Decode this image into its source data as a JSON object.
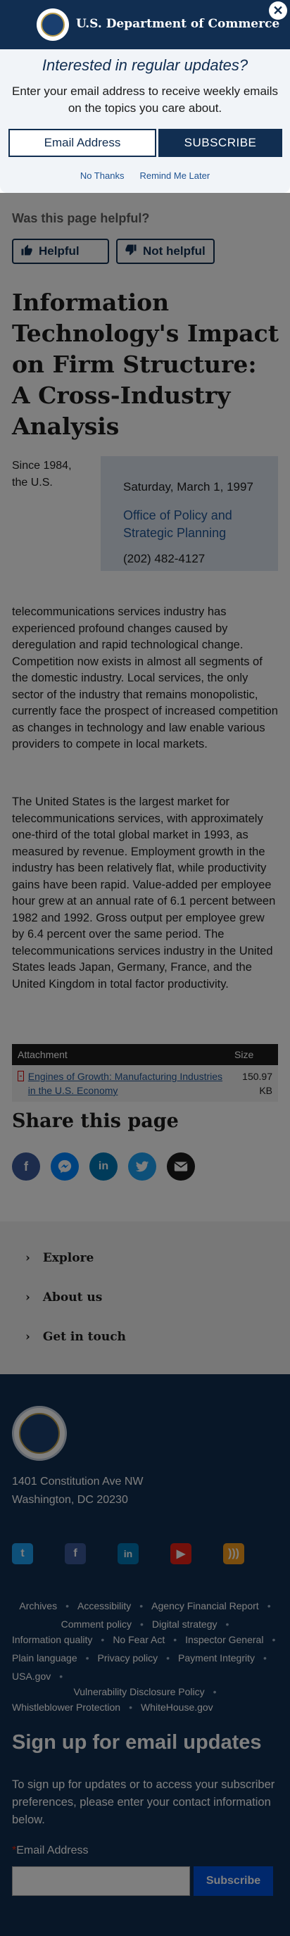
{
  "header": {
    "agency_name": "U.S. Department of Commerce"
  },
  "modal": {
    "heading": "Interested in regular updates?",
    "text": "Enter your email address to receive weekly emails on the topics you care about.",
    "email_placeholder": "Email Address",
    "subscribe_label": "SUBSCRIBE",
    "no_thanks": "No Thanks",
    "remind_later": "Remind Me Later",
    "close_symbol": "✕"
  },
  "feedback": {
    "question": "Was this page helpful?",
    "helpful_label": "Helpful",
    "not_helpful_label": "Not helpful"
  },
  "article": {
    "title": "Information Technology's Impact on Firm Structure: A Cross-Industry Analysis",
    "since": "Since 1984, the U.S.",
    "date": "Saturday, March 1, 1997",
    "office": "Office of Policy and Strategic Planning",
    "phone": "(202) 482-4127",
    "paragraph1": "telecommunications services industry has experienced profound changes caused by deregulation and rapid technological change. Competition now exists in almost all segments of the domestic industry. Local services, the only sector of the industry that remains monopolistic, currently face the prospect of increased competition as changes in technology and law enable various providers to compete in local markets.",
    "paragraph2": "The United States is the largest market for telecommunications services, with approximately one-third of the total global market in 1993, as measured by revenue. Employment growth in the industry has been relatively flat, while productivity gains have been rapid. Value-added per employee hour grew at an annual rate of 6.1 percent between 1982 and 1992. Gross output per employee grew by 6.4 percent over the same period. The telecommunications services industry in the United States leads Japan, Germany, France, and the United Kingdom in total factor productivity."
  },
  "attachments": {
    "col_attachment": "Attachment",
    "col_size": "Size",
    "rows": [
      {
        "name": "Engines of Growth: Manufacturing Industries in the U.S. Economy",
        "size": "150.97 KB"
      }
    ]
  },
  "share": {
    "heading": "Share this page",
    "icons": [
      "facebook-icon",
      "messenger-icon",
      "linkedin-icon",
      "twitter-icon",
      "email-icon"
    ]
  },
  "accordion": {
    "items": [
      "Explore",
      "About us",
      "Get in touch"
    ]
  },
  "footer": {
    "address_line1": "1401 Constitution Ave NW",
    "address_line2": "Washington, DC 20230",
    "links": [
      "Archives",
      "Accessibility",
      "Agency Financial Report",
      "Comment policy",
      "Digital strategy",
      "Information quality",
      "No Fear Act",
      "Inspector General",
      "Plain language",
      "Privacy policy",
      "Payment Integrity",
      "USA.gov",
      "Vulnerability Disclosure Policy",
      "Whistleblower Protection",
      "WhiteHouse.gov"
    ],
    "signup_heading": "Sign up for email updates",
    "signup_text": "To sign up for updates or to access your subscriber preferences, please enter your contact information below.",
    "email_label": "Email Address",
    "required_mark": "*",
    "subscribe_label": "Subscribe"
  },
  "colors": {
    "navy": "#112e51",
    "link": "#205493",
    "accent_blue": "#0050d8"
  }
}
